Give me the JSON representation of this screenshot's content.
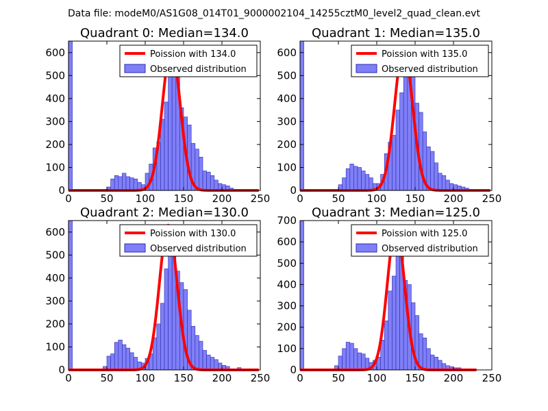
{
  "suptitle": "Data file: modeM0/AS1G08_014T01_9000002104_14255cztM0_level2_quad_clean.evt",
  "colors": {
    "observed_fill": "#7f7ff7",
    "observed_edge": "#2b2bb0",
    "poisson": "#ff0000"
  },
  "chart_data": [
    {
      "type": "bar",
      "title": "Quadrant 0: Median=134.0",
      "xlim": [
        0,
        250
      ],
      "ylim": [
        0,
        650
      ],
      "xticks": [
        0,
        50,
        100,
        150,
        200,
        250
      ],
      "yticks": [
        0,
        100,
        200,
        300,
        400,
        500,
        600
      ],
      "legend": [
        "Poission with 134.0",
        "Observed distribution"
      ],
      "legend_position": "upper right",
      "bin_width": 5,
      "bins": [
        [
          0,
          650
        ],
        [
          45,
          5
        ],
        [
          50,
          15
        ],
        [
          55,
          50
        ],
        [
          60,
          65
        ],
        [
          65,
          60
        ],
        [
          70,
          75
        ],
        [
          75,
          60
        ],
        [
          80,
          55
        ],
        [
          85,
          50
        ],
        [
          90,
          35
        ],
        [
          95,
          25
        ],
        [
          100,
          75
        ],
        [
          105,
          115
        ],
        [
          110,
          185
        ],
        [
          115,
          210
        ],
        [
          120,
          310
        ],
        [
          125,
          385
        ],
        [
          130,
          520
        ],
        [
          135,
          600
        ],
        [
          140,
          505
        ],
        [
          145,
          360
        ],
        [
          150,
          320
        ],
        [
          155,
          285
        ],
        [
          160,
          205
        ],
        [
          165,
          180
        ],
        [
          170,
          145
        ],
        [
          175,
          85
        ],
        [
          180,
          80
        ],
        [
          185,
          65
        ],
        [
          190,
          45
        ],
        [
          195,
          30
        ],
        [
          200,
          25
        ],
        [
          205,
          20
        ],
        [
          210,
          10
        ],
        [
          215,
          5
        ]
      ],
      "poisson_mean": 134.0,
      "poisson_peak": 620,
      "poisson_range": [
        0,
        248
      ]
    },
    {
      "type": "bar",
      "title": "Quadrant 1: Median=135.0",
      "xlim": [
        0,
        250
      ],
      "ylim": [
        0,
        650
      ],
      "xticks": [
        0,
        50,
        100,
        150,
        200,
        250
      ],
      "yticks": [
        0,
        100,
        200,
        300,
        400,
        500,
        600
      ],
      "legend": [
        "Poission with 135.0",
        "Observed distribution"
      ],
      "legend_position": "upper right",
      "bin_width": 5,
      "bins": [
        [
          0,
          650
        ],
        [
          50,
          25
        ],
        [
          55,
          55
        ],
        [
          60,
          95
        ],
        [
          65,
          115
        ],
        [
          70,
          105
        ],
        [
          75,
          100
        ],
        [
          80,
          85
        ],
        [
          85,
          70
        ],
        [
          90,
          55
        ],
        [
          95,
          30
        ],
        [
          100,
          30
        ],
        [
          105,
          70
        ],
        [
          110,
          160
        ],
        [
          115,
          210
        ],
        [
          120,
          240
        ],
        [
          125,
          350
        ],
        [
          130,
          425
        ],
        [
          135,
          545
        ],
        [
          140,
          590
        ],
        [
          145,
          555
        ],
        [
          150,
          380
        ],
        [
          155,
          340
        ],
        [
          160,
          255
        ],
        [
          165,
          190
        ],
        [
          170,
          170
        ],
        [
          175,
          120
        ],
        [
          180,
          75
        ],
        [
          185,
          65
        ],
        [
          190,
          45
        ],
        [
          195,
          30
        ],
        [
          200,
          25
        ],
        [
          205,
          20
        ],
        [
          210,
          15
        ],
        [
          215,
          10
        ]
      ],
      "poisson_mean": 135.0,
      "poisson_peak": 620,
      "poisson_range": [
        0,
        248
      ]
    },
    {
      "type": "bar",
      "title": "Quadrant 2: Median=130.0",
      "xlim": [
        0,
        250
      ],
      "ylim": [
        0,
        650
      ],
      "xticks": [
        0,
        50,
        100,
        150,
        200,
        250
      ],
      "yticks": [
        0,
        100,
        200,
        300,
        400,
        500,
        600
      ],
      "legend": [
        "Poission with 130.0",
        "Observed distribution"
      ],
      "legend_position": "upper right",
      "bin_width": 5,
      "bins": [
        [
          0,
          650
        ],
        [
          40,
          5
        ],
        [
          45,
          15
        ],
        [
          50,
          60
        ],
        [
          55,
          70
        ],
        [
          60,
          120
        ],
        [
          65,
          130
        ],
        [
          70,
          110
        ],
        [
          75,
          95
        ],
        [
          80,
          75
        ],
        [
          85,
          55
        ],
        [
          90,
          35
        ],
        [
          95,
          30
        ],
        [
          100,
          50
        ],
        [
          105,
          70
        ],
        [
          110,
          140
        ],
        [
          115,
          200
        ],
        [
          120,
          290
        ],
        [
          125,
          440
        ],
        [
          130,
          525
        ],
        [
          135,
          580
        ],
        [
          140,
          430
        ],
        [
          145,
          380
        ],
        [
          150,
          350
        ],
        [
          155,
          260
        ],
        [
          160,
          190
        ],
        [
          165,
          150
        ],
        [
          170,
          125
        ],
        [
          175,
          85
        ],
        [
          180,
          65
        ],
        [
          185,
          55
        ],
        [
          190,
          45
        ],
        [
          195,
          30
        ],
        [
          200,
          20
        ],
        [
          205,
          15
        ],
        [
          210,
          5
        ],
        [
          220,
          10
        ],
        [
          230,
          5
        ]
      ],
      "poisson_mean": 130.0,
      "poisson_peak": 630,
      "poisson_range": [
        0,
        248
      ]
    },
    {
      "type": "bar",
      "title": "Quadrant 3: Median=125.0",
      "xlim": [
        0,
        250
      ],
      "ylim": [
        0,
        700
      ],
      "xticks": [
        0,
        50,
        100,
        150,
        200,
        250
      ],
      "yticks": [
        0,
        100,
        200,
        300,
        400,
        500,
        600,
        700
      ],
      "legend": [
        "Poission with 125.0",
        "Observed distribution"
      ],
      "legend_position": "upper right",
      "bin_width": 5,
      "bins": [
        [
          0,
          700
        ],
        [
          40,
          5
        ],
        [
          45,
          20
        ],
        [
          50,
          65
        ],
        [
          55,
          100
        ],
        [
          60,
          130
        ],
        [
          65,
          125
        ],
        [
          70,
          100
        ],
        [
          75,
          80
        ],
        [
          80,
          75
        ],
        [
          85,
          55
        ],
        [
          90,
          35
        ],
        [
          95,
          45
        ],
        [
          100,
          60
        ],
        [
          105,
          140
        ],
        [
          110,
          230
        ],
        [
          115,
          370
        ],
        [
          120,
          440
        ],
        [
          125,
          640
        ],
        [
          130,
          555
        ],
        [
          135,
          420
        ],
        [
          140,
          400
        ],
        [
          145,
          315
        ],
        [
          150,
          255
        ],
        [
          155,
          170
        ],
        [
          160,
          150
        ],
        [
          165,
          100
        ],
        [
          170,
          70
        ],
        [
          175,
          60
        ],
        [
          180,
          45
        ],
        [
          185,
          30
        ],
        [
          190,
          20
        ],
        [
          195,
          15
        ],
        [
          200,
          10
        ],
        [
          205,
          10
        ],
        [
          210,
          5
        ],
        [
          220,
          5
        ]
      ],
      "poisson_mean": 125.0,
      "poisson_peak": 670,
      "poisson_range": [
        0,
        230
      ]
    }
  ]
}
